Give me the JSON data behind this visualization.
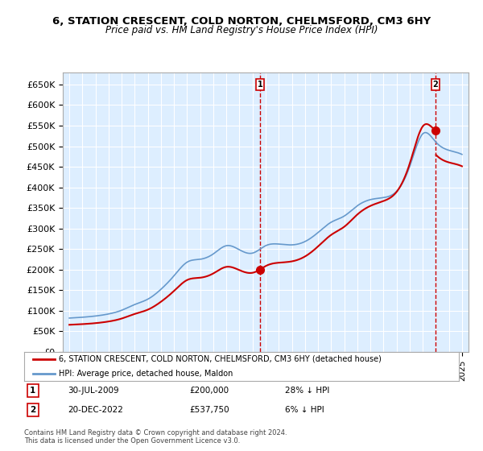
{
  "title": "6, STATION CRESCENT, COLD NORTON, CHELMSFORD, CM3 6HY",
  "subtitle": "Price paid vs. HM Land Registry's House Price Index (HPI)",
  "legend_line1": "6, STATION CRESCENT, COLD NORTON, CHELMSFORD, CM3 6HY (detached house)",
  "legend_line2": "HPI: Average price, detached house, Maldon",
  "annotation1_label": "1",
  "annotation1_date": "30-JUL-2009",
  "annotation1_price": "£200,000",
  "annotation1_note": "28% ↓ HPI",
  "annotation2_label": "2",
  "annotation2_date": "20-DEC-2022",
  "annotation2_price": "£537,750",
  "annotation2_note": "6% ↓ HPI",
  "footer1": "Contains HM Land Registry data © Crown copyright and database right 2024.",
  "footer2": "This data is licensed under the Open Government Licence v3.0.",
  "hpi_color": "#6699cc",
  "price_color": "#cc0000",
  "marker_color": "#cc0000",
  "vline_color": "#cc0000",
  "background_color": "#ddeeff",
  "ylim": [
    0,
    680000
  ],
  "yticks": [
    0,
    50000,
    100000,
    150000,
    200000,
    250000,
    300000,
    350000,
    400000,
    450000,
    500000,
    550000,
    600000,
    650000
  ],
  "hpi_years": [
    1995,
    1996,
    1997,
    1998,
    1999,
    2000,
    2001,
    2002,
    2003,
    2004,
    2005,
    2006,
    2007,
    2008,
    2009,
    2010,
    2011,
    2012,
    2013,
    2014,
    2015,
    2016,
    2017,
    2018,
    2019,
    2020,
    2021,
    2022,
    2023,
    2024,
    2025
  ],
  "hpi_values": [
    82000,
    84000,
    87000,
    92000,
    101000,
    115000,
    128000,
    152000,
    185000,
    218000,
    225000,
    238000,
    258000,
    248000,
    240000,
    258000,
    262000,
    260000,
    268000,
    290000,
    315000,
    330000,
    355000,
    370000,
    375000,
    390000,
    450000,
    530000,
    510000,
    490000,
    480000
  ],
  "sale1_year": 2009.58,
  "sale1_value": 200000,
  "sale2_year": 2022.97,
  "sale2_value": 537750,
  "vline1_year": 2009.58,
  "vline2_year": 2022.97,
  "xmin": 1994.5,
  "xmax": 2025.5
}
